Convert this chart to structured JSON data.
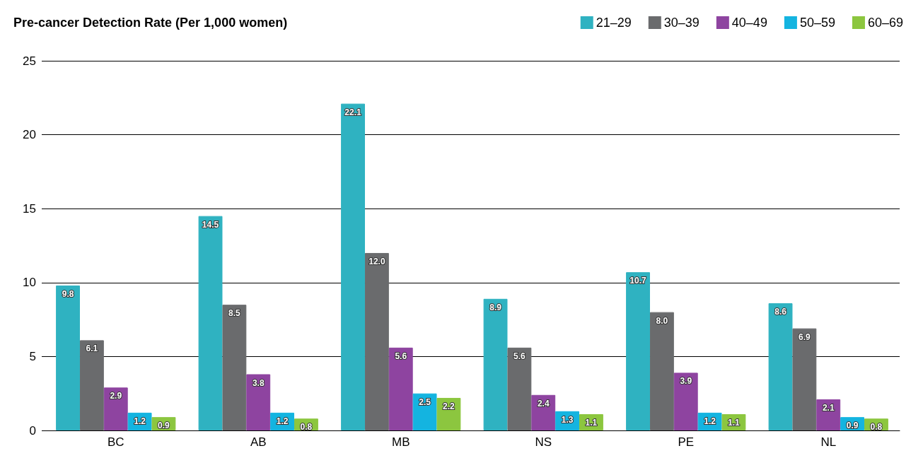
{
  "chart_data": {
    "type": "bar",
    "title": "Pre-cancer Detection Rate (Per 1,000 women)",
    "categories": [
      "BC",
      "AB",
      "MB",
      "NS",
      "PE",
      "NL"
    ],
    "series": [
      {
        "name": "21–29",
        "color": "#2fb2c1",
        "values": [
          9.8,
          14.5,
          22.1,
          8.9,
          10.7,
          8.6
        ],
        "value_labels": [
          "9.8",
          "14.5",
          "22.1",
          "8.9",
          "10.7",
          "8.6"
        ]
      },
      {
        "name": "30–39",
        "color": "#6a6b6d",
        "values": [
          6.1,
          8.5,
          12.0,
          5.6,
          8.0,
          6.9
        ],
        "value_labels": [
          "6.1",
          "8.5",
          "12.0",
          "5.6",
          "8.0",
          "6.9"
        ]
      },
      {
        "name": "40–49",
        "color": "#8e44a0",
        "values": [
          2.9,
          3.8,
          5.6,
          2.4,
          3.9,
          2.1
        ],
        "value_labels": [
          "2.9",
          "3.8",
          "5.6",
          "2.4",
          "3.9",
          "2.1"
        ]
      },
      {
        "name": "50–59",
        "color": "#14b4e0",
        "values": [
          1.2,
          1.2,
          2.5,
          1.3,
          1.2,
          0.9
        ],
        "value_labels": [
          "1.2",
          "1.2",
          "2.5",
          "1.3",
          "1.2",
          "0.9"
        ]
      },
      {
        "name": "60–69",
        "color": "#8cc63f",
        "values": [
          0.9,
          0.8,
          2.2,
          1.1,
          1.1,
          0.8
        ],
        "value_labels": [
          "0.9",
          "0.8",
          "2.2",
          "1.1",
          "1.1",
          "0.8"
        ]
      }
    ],
    "ylim": [
      0,
      25
    ],
    "yticks": [
      0,
      5,
      10,
      15,
      20,
      25
    ],
    "grid": "y",
    "legend": "top right"
  }
}
